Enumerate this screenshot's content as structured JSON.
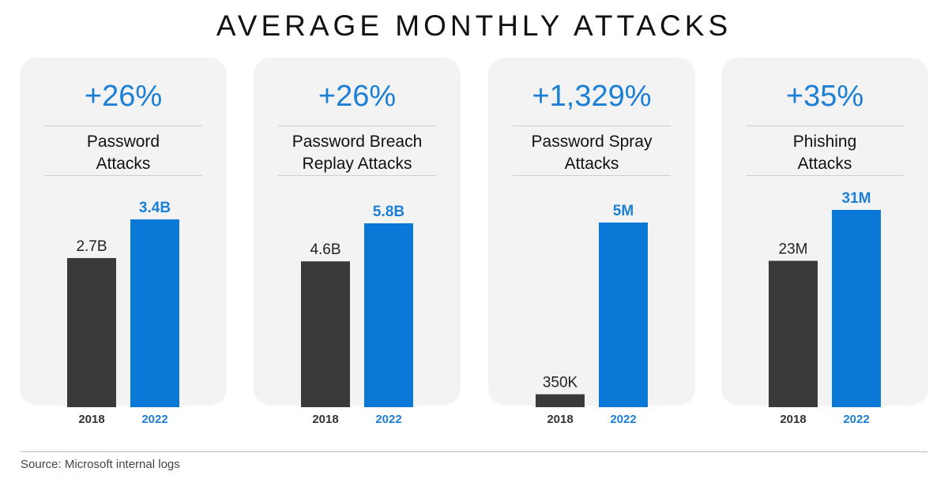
{
  "title": "AVERAGE MONTHLY ATTACKS",
  "source": "Source: Microsoft internal logs",
  "colors": {
    "bar_2018": "#3a3a3a",
    "bar_2022": "#0a78d7",
    "accent_text": "#1b7fd6",
    "panel_bg": "#f3f3f3"
  },
  "chart_data": [
    {
      "type": "bar",
      "title": "Password Attacks",
      "title_lines": [
        "Password",
        "Attacks"
      ],
      "change": "+26%",
      "categories": [
        "2018",
        "2022"
      ],
      "values": [
        2.7,
        3.4
      ],
      "value_labels": [
        "2.7B",
        "3.4B"
      ],
      "unit": "B"
    },
    {
      "type": "bar",
      "title": "Password Breach Replay Attacks",
      "title_lines": [
        "Password Breach",
        "Replay Attacks"
      ],
      "change": "+26%",
      "categories": [
        "2018",
        "2022"
      ],
      "values": [
        4.6,
        5.8
      ],
      "value_labels": [
        "4.6B",
        "5.8B"
      ],
      "unit": "B"
    },
    {
      "type": "bar",
      "title": "Password Spray Attacks",
      "title_lines": [
        "Password Spray",
        "Attacks"
      ],
      "change": "+1,329%",
      "categories": [
        "2018",
        "2022"
      ],
      "values": [
        0.35,
        5
      ],
      "value_labels": [
        "350K",
        "5M"
      ],
      "unit": "M"
    },
    {
      "type": "bar",
      "title": "Phishing Attacks",
      "title_lines": [
        "Phishing",
        "Attacks"
      ],
      "change": "+35%",
      "categories": [
        "2018",
        "2022"
      ],
      "values": [
        23,
        31
      ],
      "value_labels": [
        "23M",
        "31M"
      ],
      "unit": "M"
    }
  ]
}
